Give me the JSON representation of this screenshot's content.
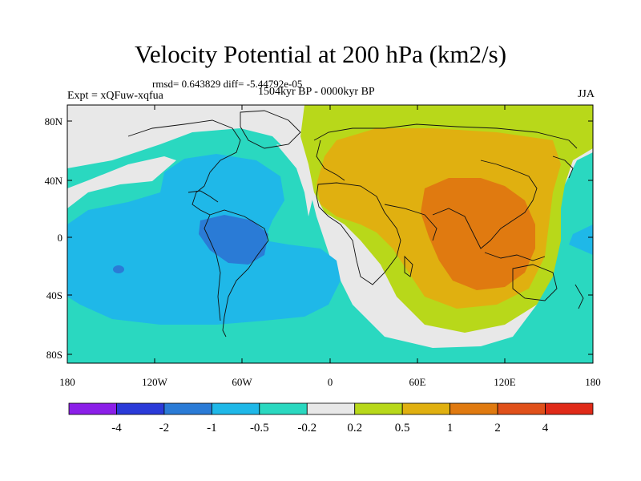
{
  "title": "Velocity Potential at 200 hPa (km2/s)",
  "stats_line": "rmsd= 0.643829 diff= -5.44792e-05",
  "period": "1504kyr BP - 0000kyr BP",
  "experiment": "Expt = xQFuw-xqfua",
  "season": "JJA",
  "lat_ticks": [
    "80N",
    "40N",
    "0",
    "40S",
    "80S"
  ],
  "lon_ticks": [
    "180",
    "120W",
    "60W",
    "0",
    "60E",
    "120E",
    "180"
  ],
  "colorbar": {
    "labels": [
      "-4",
      "-2",
      "-1",
      "-0.5",
      "-0.2",
      "0.2",
      "0.5",
      "1",
      "2",
      "4"
    ],
    "colors": [
      "#8b1fe8",
      "#2a3ad8",
      "#2a7bd6",
      "#1fb8e8",
      "#2ad8c0",
      "#e8e8e8",
      "#b8d81a",
      "#e0b010",
      "#e07a10",
      "#e0501a",
      "#e02a18"
    ]
  },
  "map_colors": {
    "ocean_base": "#2ad8c0",
    "band_minus05": "#1fb8e8",
    "band_minus1": "#2a7bd6",
    "band_neutral": "#e8e8e8",
    "band_02": "#b8d81a",
    "band_05": "#e0b010",
    "band_1": "#e07a10"
  }
}
